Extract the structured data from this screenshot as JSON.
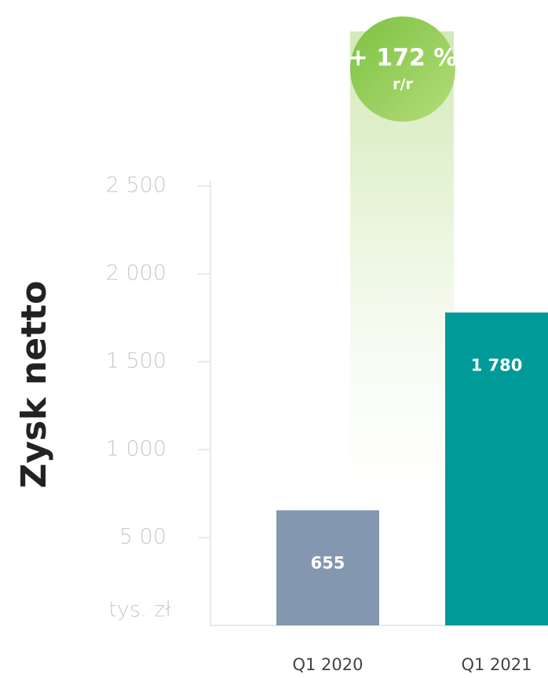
{
  "chart_data": {
    "type": "bar",
    "y_axis_label": "Zysk netto",
    "unit_label": "tys. zł",
    "annotation": "+ 172 %",
    "annotation_sub": "r/r",
    "categories": [
      "Q1 2020",
      "Q1 2021"
    ],
    "values": [
      655,
      1780
    ],
    "value_labels": [
      "655",
      "1 780"
    ],
    "colors": [
      "#8497b0",
      "#009b98"
    ],
    "ylim": [
      0,
      2500
    ],
    "yticks": [
      {
        "value": 500,
        "label": "5 00"
      },
      {
        "value": 1000,
        "label": "1 000"
      },
      {
        "value": 1500,
        "label": "1 500"
      },
      {
        "value": 2000,
        "label": "2 000"
      },
      {
        "value": 2500,
        "label": "2 500"
      }
    ]
  }
}
